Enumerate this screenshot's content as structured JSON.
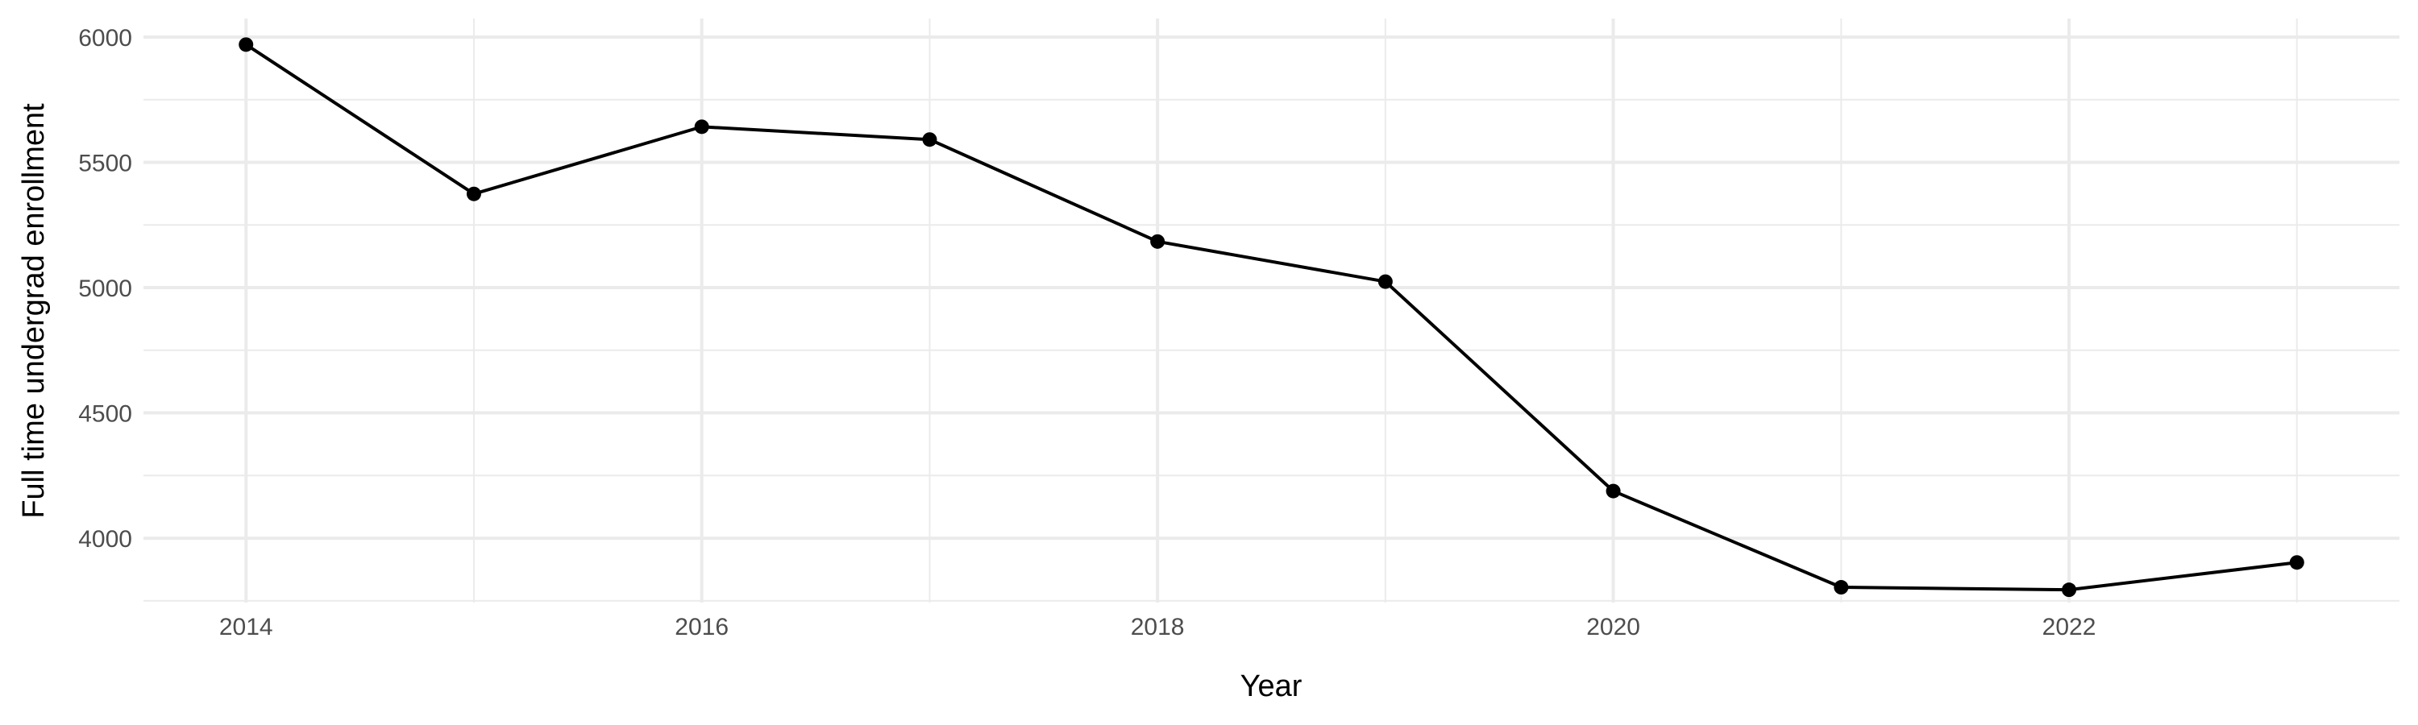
{
  "chart_data": {
    "type": "line",
    "title": "",
    "xlabel": "Year",
    "ylabel": "Full time undergrad enrollment",
    "x": [
      2014,
      2015,
      2016,
      2017,
      2018,
      2019,
      2020,
      2021,
      2022,
      2023
    ],
    "series": [
      {
        "values": [
          5970,
          5374,
          5642,
          5591,
          5184,
          5024,
          4188,
          3804,
          3794,
          3903
        ]
      }
    ],
    "xticks": [
      "2014",
      "2016",
      "2018",
      "2020",
      "2022"
    ],
    "yticks": [
      "4000",
      "4500",
      "5000",
      "5500",
      "6000"
    ],
    "xlim": [
      2013.55,
      2023.45
    ],
    "ylim": [
      3743,
      6074
    ],
    "grid": true,
    "colors": {
      "line": "#000000",
      "grid": "#ebebeb",
      "tick_text": "#4d4d4d"
    }
  }
}
